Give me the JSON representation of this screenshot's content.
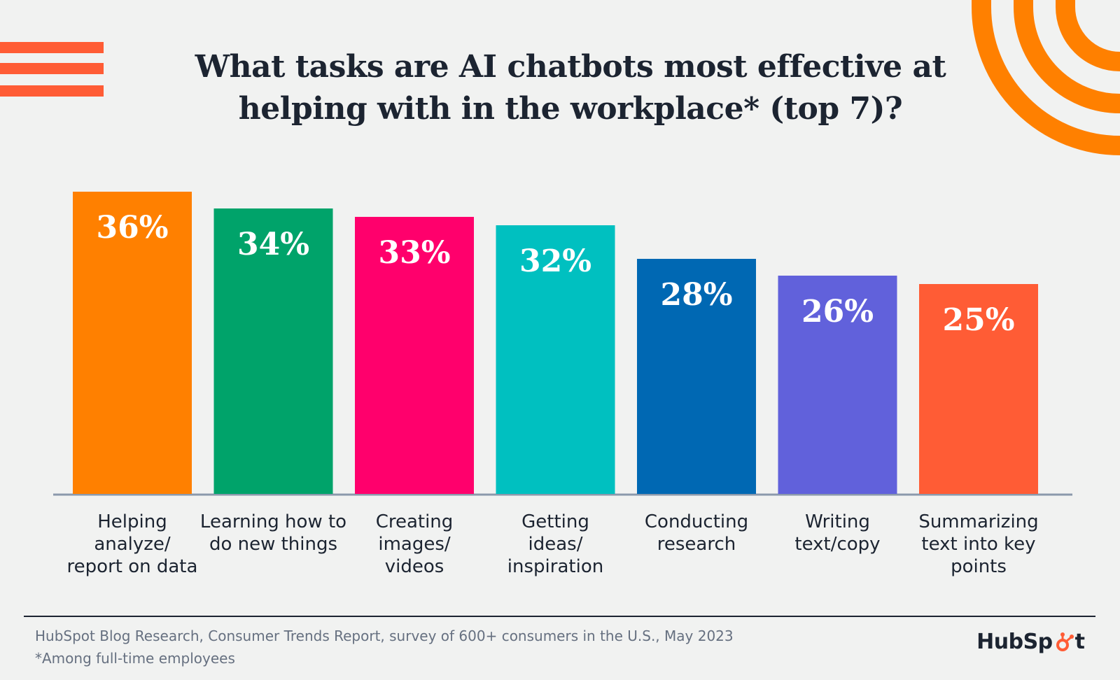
{
  "title": "What tasks are AI chatbots most effective at helping with in the workplace* (top 7)?",
  "chart_data": {
    "type": "bar",
    "title": "What tasks are AI chatbots most effective at helping with in the workplace* (top 7)?",
    "categories": [
      [
        "Helping",
        "analyze/",
        "report on data"
      ],
      [
        "Learning how to",
        "do new things"
      ],
      [
        "Creating",
        "images/",
        "videos"
      ],
      [
        "Getting",
        "ideas/",
        "inspiration"
      ],
      [
        "Conducting",
        "research"
      ],
      [
        "Writing",
        "text/copy"
      ],
      [
        "Summarizing",
        "text into key",
        "points"
      ]
    ],
    "values": [
      36,
      34,
      33,
      32,
      28,
      26,
      25
    ],
    "value_labels": [
      "36%",
      "34%",
      "33%",
      "32%",
      "28%",
      "26%",
      "25%"
    ],
    "colors": [
      "#ff8000",
      "#00a36a",
      "#ff006c",
      "#00c0c0",
      "#0068b3",
      "#6161db",
      "#ff5c35"
    ],
    "ylim": [
      0,
      36
    ],
    "grid": false,
    "legend": "none"
  },
  "footer": {
    "source": "HubSpot Blog Research, Consumer Trends Report, survey of 600+ consumers in the U.S., May 2023",
    "note": "*Among full-time employees",
    "logo_text": "HubSp",
    "logo_tail": "t"
  },
  "colors": {
    "background": "#f1f2f1",
    "accent_orange": "#ff8000",
    "accent_red": "#ff5c35",
    "text_dark": "#1c2431",
    "axis": "#8b99ac"
  }
}
